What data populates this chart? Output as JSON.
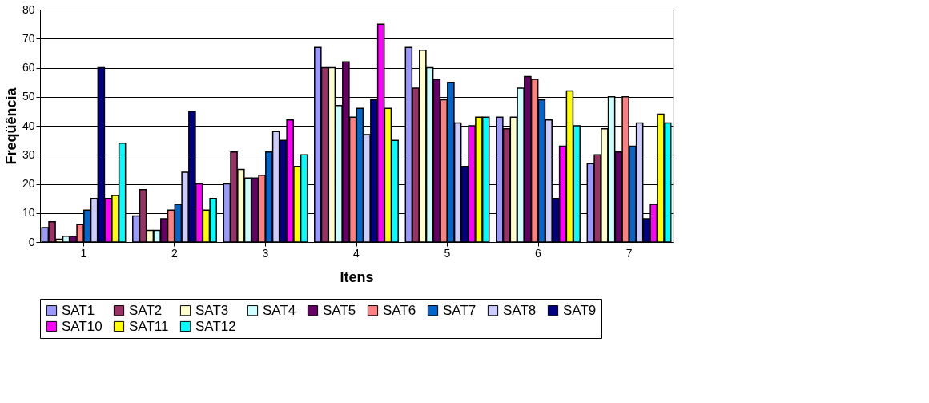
{
  "chart_data": {
    "type": "bar",
    "xlabel": "Itens",
    "ylabel": "Freqüência",
    "categories": [
      "1",
      "2",
      "3",
      "4",
      "5",
      "6",
      "7"
    ],
    "ylim": [
      0,
      80
    ],
    "yticks": [
      0,
      10,
      20,
      30,
      40,
      50,
      60,
      70,
      80
    ],
    "grid": "y",
    "legend": "bottom",
    "series": [
      {
        "name": "SAT1",
        "color": "#9999ff",
        "values": [
          5,
          9,
          20,
          67,
          67,
          43,
          27
        ]
      },
      {
        "name": "SAT2",
        "color": "#993366",
        "values": [
          7,
          18,
          31,
          60,
          53,
          39,
          30
        ]
      },
      {
        "name": "SAT3",
        "color": "#ffffcc",
        "values": [
          1,
          4,
          25,
          60,
          66,
          43,
          39
        ]
      },
      {
        "name": "SAT4",
        "color": "#ccffff",
        "values": [
          2,
          4,
          22,
          47,
          60,
          53,
          50
        ]
      },
      {
        "name": "SAT5",
        "color": "#660066",
        "values": [
          2,
          8,
          22,
          62,
          56,
          57,
          31
        ]
      },
      {
        "name": "SAT6",
        "color": "#ff8080",
        "values": [
          6,
          11,
          23,
          43,
          49,
          56,
          50
        ]
      },
      {
        "name": "SAT7",
        "color": "#0066cc",
        "values": [
          11,
          13,
          31,
          46,
          55,
          49,
          33
        ]
      },
      {
        "name": "SAT8",
        "color": "#ccccff",
        "values": [
          15,
          24,
          38,
          37,
          41,
          42,
          41
        ]
      },
      {
        "name": "SAT9",
        "color": "#000080",
        "values": [
          60,
          45,
          35,
          49,
          26,
          15,
          8
        ]
      },
      {
        "name": "SAT10",
        "color": "#ff00ff",
        "values": [
          15,
          20,
          42,
          75,
          40,
          33,
          13
        ]
      },
      {
        "name": "SAT11",
        "color": "#ffff00",
        "values": [
          16,
          11,
          26,
          46,
          43,
          52,
          44
        ]
      },
      {
        "name": "SAT12",
        "color": "#00ffff",
        "values": [
          34,
          15,
          30,
          35,
          43,
          40,
          41
        ]
      }
    ]
  }
}
